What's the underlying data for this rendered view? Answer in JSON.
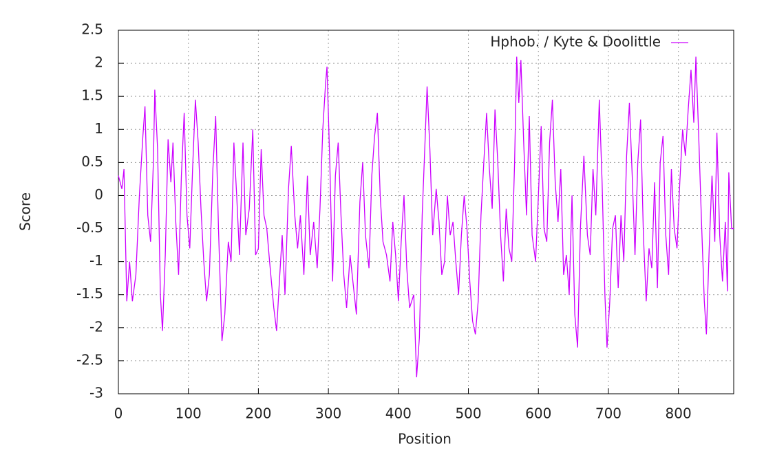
{
  "chart_data": {
    "type": "line",
    "xlabel": "Position",
    "ylabel": "Score",
    "xlim": [
      0,
      879
    ],
    "ylim": [
      -3,
      2.5
    ],
    "xticks": [
      0,
      100,
      200,
      300,
      400,
      500,
      600,
      700,
      800
    ],
    "yticks": [
      -3,
      -2.5,
      -2,
      -1.5,
      -1,
      -0.5,
      0,
      0.5,
      1,
      1.5,
      2,
      2.5
    ],
    "grid": true,
    "legend": "top-right",
    "x": [
      0,
      5,
      8,
      12,
      16,
      20,
      25,
      30,
      35,
      38,
      42,
      46,
      50,
      52,
      56,
      60,
      63,
      67,
      71,
      75,
      78,
      82,
      86,
      90,
      94,
      98,
      102,
      106,
      110,
      114,
      118,
      122,
      126,
      130,
      135,
      139,
      143,
      148,
      152,
      157,
      161,
      165,
      169,
      173,
      178,
      182,
      187,
      192,
      196,
      200,
      204,
      208,
      212,
      216,
      222,
      226,
      230,
      234,
      238,
      243,
      247,
      252,
      256,
      260,
      265,
      270,
      274,
      279,
      284,
      288,
      292,
      296,
      298,
      302,
      306,
      310,
      314,
      318,
      322,
      326,
      331,
      336,
      340,
      345,
      349,
      353,
      358,
      362,
      366,
      370,
      374,
      378,
      383,
      388,
      392,
      396,
      400,
      404,
      408,
      412,
      416,
      422,
      426,
      430,
      434,
      438,
      441,
      445,
      449,
      454,
      458,
      462,
      466,
      470,
      474,
      478,
      482,
      486,
      490,
      494,
      498,
      502,
      506,
      510,
      514,
      518,
      522,
      526,
      530,
      534,
      538,
      542,
      546,
      550,
      554,
      558,
      562,
      566,
      569,
      572,
      575,
      579,
      583,
      587,
      591,
      596,
      600,
      604,
      608,
      612,
      616,
      620,
      624,
      628,
      632,
      636,
      640,
      644,
      648,
      652,
      656,
      660,
      665,
      670,
      674,
      678,
      682,
      687,
      691,
      695,
      698,
      702,
      706,
      710,
      714,
      718,
      722,
      726,
      730,
      734,
      738,
      742,
      746,
      750,
      754,
      758,
      762,
      766,
      770,
      774,
      778,
      782,
      786,
      790,
      794,
      798,
      802,
      806,
      810,
      814,
      818,
      822,
      825,
      829,
      833,
      837,
      840,
      844,
      848,
      852,
      855,
      859,
      863,
      867,
      870,
      872,
      876,
      879
    ],
    "series": [
      {
        "name": "Hphob. / Kyte & Doolittle",
        "color": "#cc00ff",
        "values": [
          0.3,
          0.1,
          0.4,
          -1.6,
          -1.0,
          -1.6,
          -1.2,
          0.0,
          0.9,
          1.35,
          -0.3,
          -0.7,
          0.5,
          1.6,
          0.7,
          -1.5,
          -2.05,
          -0.9,
          0.85,
          0.2,
          0.8,
          -0.4,
          -1.2,
          0.3,
          1.25,
          -0.3,
          -0.8,
          0.4,
          1.45,
          0.8,
          -0.2,
          -1.0,
          -1.6,
          -1.2,
          0.4,
          1.2,
          -0.5,
          -2.2,
          -1.8,
          -0.7,
          -1.0,
          0.8,
          0.0,
          -0.9,
          0.8,
          -0.6,
          -0.2,
          1.0,
          -0.9,
          -0.8,
          0.7,
          -0.3,
          -0.5,
          -1.0,
          -1.7,
          -2.05,
          -1.3,
          -0.6,
          -1.5,
          0.1,
          0.75,
          -0.3,
          -0.8,
          -0.3,
          -1.2,
          0.3,
          -0.9,
          -0.4,
          -1.1,
          -0.2,
          1.0,
          1.7,
          1.95,
          0.5,
          -1.3,
          0.3,
          0.8,
          -0.3,
          -1.2,
          -1.7,
          -0.9,
          -1.4,
          -1.8,
          -0.1,
          0.5,
          -0.6,
          -1.1,
          0.3,
          0.9,
          1.25,
          0.0,
          -0.7,
          -0.9,
          -1.3,
          -0.4,
          -0.9,
          -1.6,
          -0.7,
          0.0,
          -1.1,
          -1.7,
          -1.5,
          -2.75,
          -2.15,
          -0.3,
          0.8,
          1.65,
          0.7,
          -0.6,
          0.1,
          -0.4,
          -1.2,
          -1.0,
          0.0,
          -0.6,
          -0.4,
          -1.0,
          -1.5,
          -0.6,
          0.0,
          -0.5,
          -1.3,
          -1.9,
          -2.1,
          -1.6,
          -0.3,
          0.5,
          1.25,
          0.4,
          -0.2,
          1.3,
          0.5,
          -0.6,
          -1.3,
          -0.2,
          -0.8,
          -1.0,
          0.5,
          2.1,
          1.4,
          2.05,
          0.8,
          -0.3,
          1.2,
          -0.6,
          -1.0,
          0.0,
          1.05,
          -0.5,
          -0.7,
          0.8,
          1.45,
          0.2,
          -0.4,
          0.4,
          -1.2,
          -0.9,
          -1.5,
          0.0,
          -1.8,
          -2.3,
          -0.5,
          0.6,
          -0.6,
          -0.9,
          0.4,
          -0.3,
          1.45,
          0.2,
          -1.5,
          -2.3,
          -1.6,
          -0.5,
          -0.3,
          -1.4,
          -0.3,
          -1.0,
          0.6,
          1.4,
          0.3,
          -0.9,
          0.5,
          1.15,
          -0.6,
          -1.6,
          -0.8,
          -1.1,
          0.2,
          -1.4,
          0.5,
          0.9,
          -0.6,
          -1.2,
          0.4,
          -0.5,
          -0.8,
          0.2,
          1.0,
          0.6,
          1.3,
          1.9,
          1.1,
          2.1,
          0.9,
          -0.4,
          -1.6,
          -2.1,
          -0.8,
          0.3,
          -0.7,
          0.95,
          -0.6,
          -1.3,
          -0.4,
          -1.45,
          0.35,
          -0.5,
          -0.5
        ]
      }
    ]
  }
}
